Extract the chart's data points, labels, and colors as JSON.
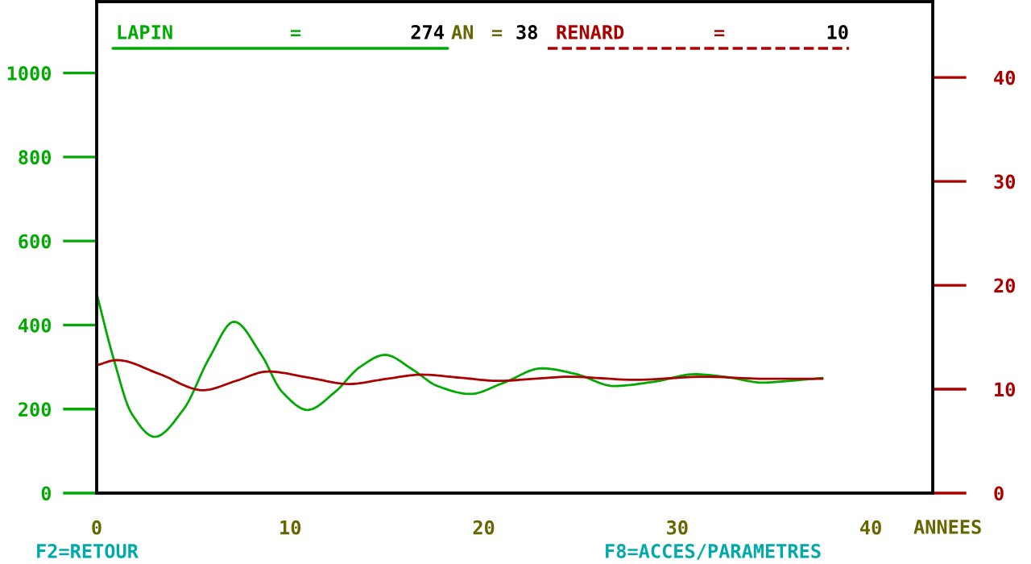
{
  "chart_data": {
    "type": "line",
    "xlabel": "ANNEES",
    "xlim": [
      0,
      43.2
    ],
    "xticks": [
      0,
      10,
      20,
      30,
      40
    ],
    "ylim": [
      0,
      1170
    ],
    "yticks": [
      0,
      200,
      400,
      600,
      800,
      1000
    ],
    "y2lim": [
      0,
      47.3
    ],
    "y2ticks": [
      0,
      10,
      20,
      30,
      40
    ],
    "grid": false,
    "marker": "none",
    "line_style": "solid",
    "series": [
      {
        "name": "LAPIN",
        "color": "#00aa00",
        "x": [
          0,
          0.9,
          1.8,
          3.0,
          4.5,
          5.8,
          7.1,
          8.5,
          9.6,
          10.9,
          12.3,
          13.6,
          14.9,
          16.3,
          17.6,
          19.3,
          21.0,
          23.0,
          24.8,
          26.7,
          28.8,
          30.9,
          32.6,
          34.4,
          36.0,
          37.5
        ],
        "values": [
          475,
          316,
          190,
          134,
          200,
          320,
          408,
          330,
          240,
          198,
          240,
          300,
          329,
          295,
          255,
          236,
          262,
          297,
          283,
          255,
          265,
          283,
          276,
          263,
          268,
          274
        ]
      },
      {
        "name": "RENARD",
        "color": "#aa0000",
        "axis": "y2",
        "x": [
          0,
          1.05,
          3.2,
          5.5,
          7.2,
          8.85,
          11.0,
          13.0,
          15.0,
          16.8,
          18.8,
          20.8,
          22.6,
          24.4,
          27.8,
          31.4,
          34.5,
          37.5
        ],
        "values": [
          12.3,
          12.8,
          11.5,
          9.9,
          10.8,
          11.7,
          11.1,
          10.5,
          11.0,
          11.4,
          11.1,
          10.8,
          11.0,
          11.2,
          10.9,
          11.2,
          11.0,
          11.0
        ]
      }
    ],
    "annotations": [
      "=",
      "274",
      "AN",
      "=",
      "38",
      "=",
      "10",
      "F2=RETOUR",
      "F8=ACCES/PARAMETRES"
    ]
  }
}
